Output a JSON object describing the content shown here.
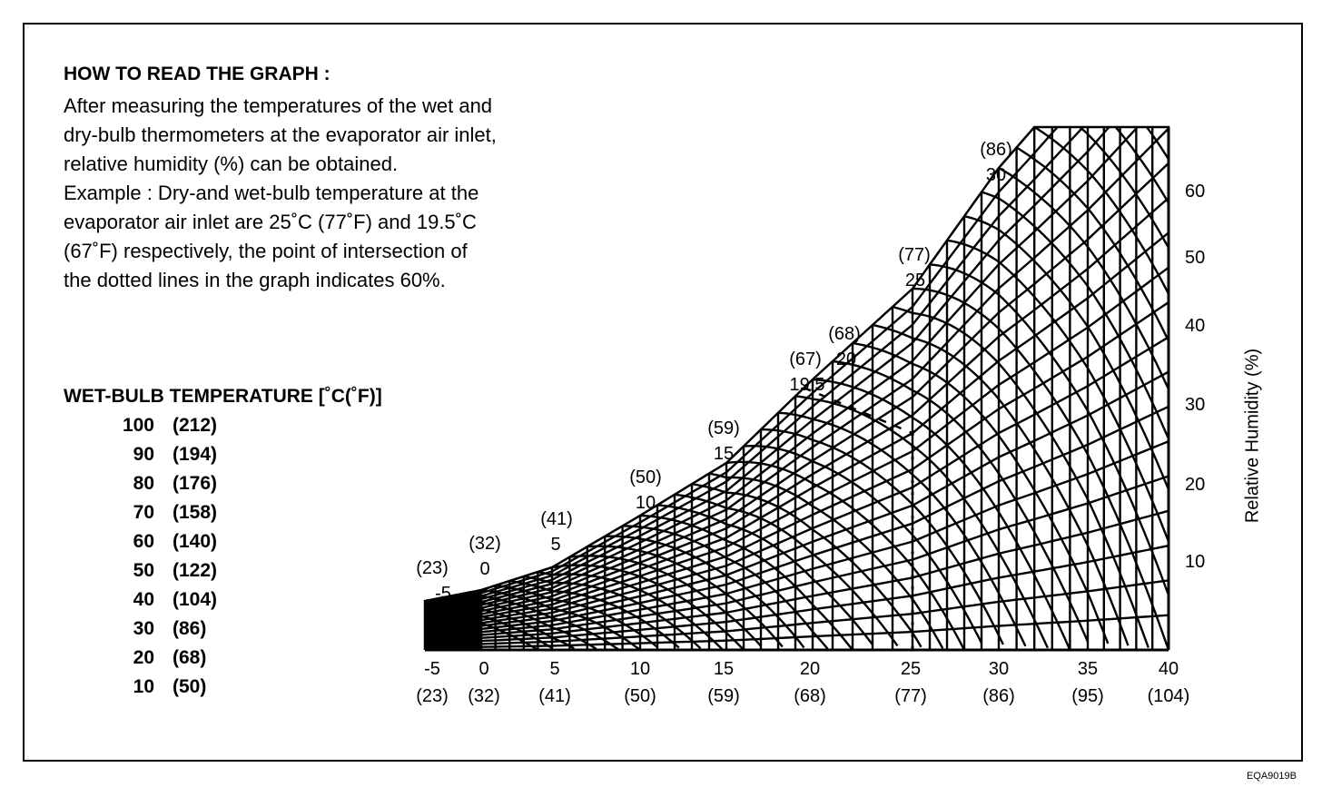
{
  "how_to": {
    "title": "HOW TO READ THE GRAPH :",
    "lines": [
      "After measuring the temperatures of the wet and",
      "dry-bulb thermometers at the evaporator air inlet,",
      "relative humidity (%) can be obtained.",
      "Example : Dry-and wet-bulb temperature at the",
      "evaporator air inlet are 25˚C (77˚F) and 19.5˚C",
      "(67˚F) respectively, the point of intersection of",
      "the dotted lines in the graph indicates 60%."
    ]
  },
  "wet_bulb": {
    "title": "WET-BULB TEMPERATURE [˚C(˚F)]",
    "rows": [
      {
        "c": "100",
        "f": "(212)"
      },
      {
        "c": "90",
        "f": "(194)"
      },
      {
        "c": "80",
        "f": "(176)"
      },
      {
        "c": "70",
        "f": "(158)"
      },
      {
        "c": "60",
        "f": "(140)"
      },
      {
        "c": "50",
        "f": "(122)"
      },
      {
        "c": "40",
        "f": "(104)"
      },
      {
        "c": "30",
        "f": "(86)"
      },
      {
        "c": "20",
        "f": "(68)"
      },
      {
        "c": "10",
        "f": "(50)"
      }
    ]
  },
  "chart": {
    "x_ticks": [
      {
        "c": "-5",
        "f": "(23)"
      },
      {
        "c": "0",
        "f": "(32)"
      },
      {
        "c": "5",
        "f": "(41)"
      },
      {
        "c": "10",
        "f": "(50)"
      },
      {
        "c": "15",
        "f": "(59)"
      },
      {
        "c": "20",
        "f": "(68)"
      },
      {
        "c": "25",
        "f": "(77)"
      },
      {
        "c": "30",
        "f": "(86)"
      },
      {
        "c": "35",
        "f": "(95)"
      },
      {
        "c": "40",
        "f": "(104)"
      }
    ],
    "curve_labels": [
      {
        "c": "-5",
        "f": "(23)"
      },
      {
        "c": "0",
        "f": "(32)"
      },
      {
        "c": "5",
        "f": "(41)"
      },
      {
        "c": "10",
        "f": "(50)"
      },
      {
        "c": "15",
        "f": "(59)"
      },
      {
        "c": "20",
        "f": "(68)"
      },
      {
        "c": "19.5",
        "f": "(67)"
      },
      {
        "c": "25",
        "f": "(77)"
      },
      {
        "c": "30",
        "f": "(86)"
      }
    ],
    "rh_ticks": [
      "60",
      "50",
      "40",
      "30",
      "20",
      "10"
    ],
    "rh_title": "Relative Humidity (%)",
    "example": {
      "dry_bulb_c": 25,
      "wet_bulb_c": 19.5,
      "rh_percent": 60
    }
  },
  "code": "EQA9019B"
}
